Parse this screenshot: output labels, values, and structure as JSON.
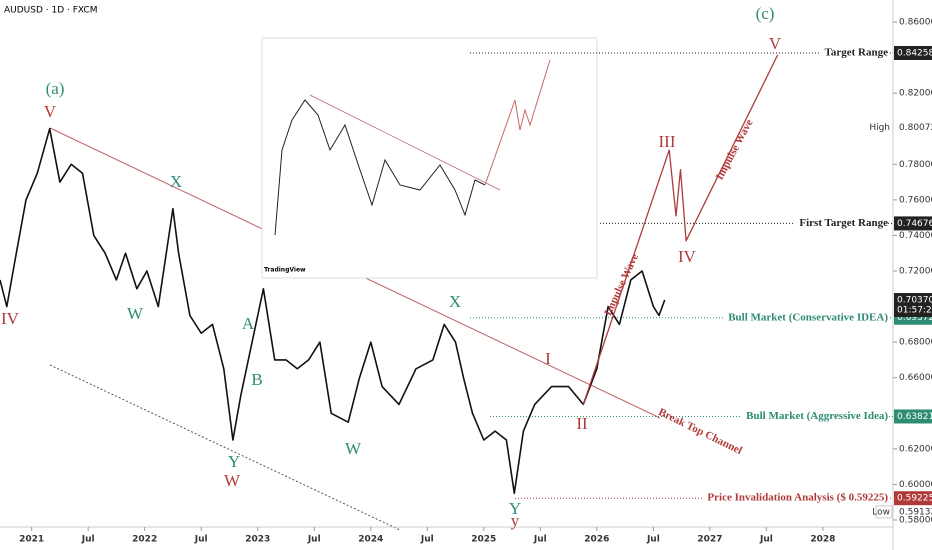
{
  "chart_data": {
    "type": "line",
    "title": "AUDUSD · 1D · FXCM",
    "xlim": [
      2020.72,
      2028.62
    ],
    "ylim": [
      0.58,
      0.86
    ],
    "xticks": [
      2021,
      {
        "value": 2021.5,
        "label": "Jul"
      },
      2022,
      {
        "value": 2022.5,
        "label": "Jul"
      },
      2023,
      {
        "value": 2023.5,
        "label": "Jul"
      },
      2024,
      {
        "value": 2024.5,
        "label": "Jul"
      },
      2025,
      {
        "value": 2025.5,
        "label": "Jul"
      },
      2026,
      {
        "value": 2026.5,
        "label": "Jul"
      },
      2027,
      {
        "value": 2027.5,
        "label": "Jul"
      },
      2028
    ],
    "yticks": [
      {
        "value": 0.58,
        "label": "0.58000"
      },
      {
        "value": 0.6,
        "label": "0.60000"
      },
      {
        "value": 0.62,
        "label": "0.62000"
      },
      {
        "value": 0.66,
        "label": "0.66000"
      },
      {
        "value": 0.68,
        "label": "0.68000"
      },
      {
        "value": 0.72,
        "label": "0.72000"
      },
      {
        "value": 0.74,
        "label": "0.74000"
      },
      {
        "value": 0.76,
        "label": "0.76000"
      },
      {
        "value": 0.78,
        "label": "0.78000"
      },
      {
        "value": 0.82,
        "label": "0.82000"
      },
      {
        "value": 0.86,
        "label": "0.86000"
      }
    ],
    "series": [
      {
        "name": "AUDUSD",
        "color": "#111111",
        "x": [
          2020.72,
          2020.78,
          2020.85,
          2020.95,
          2021.05,
          2021.16,
          2021.25,
          2021.35,
          2021.45,
          2021.55,
          2021.65,
          2021.75,
          2021.83,
          2021.93,
          2022.02,
          2022.12,
          2022.25,
          2022.3,
          2022.4,
          2022.5,
          2022.6,
          2022.7,
          2022.78,
          2022.85,
          2022.95,
          2023.05,
          2023.15,
          2023.25,
          2023.35,
          2023.45,
          2023.55,
          2023.65,
          2023.8,
          2023.9,
          2024.0,
          2024.1,
          2024.25,
          2024.4,
          2024.55,
          2024.65,
          2024.75,
          2024.82,
          2024.9,
          2025.0,
          2025.1,
          2025.2,
          2025.27,
          2025.35,
          2025.45,
          2025.6,
          2025.75,
          2025.88,
          2026.0,
          2026.1,
          2026.2,
          2026.3,
          2026.4,
          2026.5,
          2026.55,
          2026.6
        ],
        "values": [
          0.715,
          0.7,
          0.725,
          0.76,
          0.775,
          0.8,
          0.77,
          0.78,
          0.775,
          0.74,
          0.73,
          0.715,
          0.73,
          0.71,
          0.72,
          0.7,
          0.755,
          0.73,
          0.695,
          0.685,
          0.69,
          0.665,
          0.625,
          0.65,
          0.68,
          0.71,
          0.67,
          0.67,
          0.665,
          0.67,
          0.68,
          0.64,
          0.635,
          0.66,
          0.68,
          0.655,
          0.645,
          0.665,
          0.67,
          0.69,
          0.68,
          0.66,
          0.64,
          0.625,
          0.63,
          0.625,
          0.595,
          0.63,
          0.645,
          0.655,
          0.655,
          0.645,
          0.665,
          0.7,
          0.69,
          0.715,
          0.72,
          0.7,
          0.695,
          0.7037
        ]
      },
      {
        "name": "Projection",
        "color": "#b03a3a",
        "x": [
          2025.88,
          2026.64,
          2026.7,
          2026.74,
          2026.79,
          2027.6
        ],
        "values": [
          0.645,
          0.788,
          0.751,
          0.777,
          0.737,
          0.8415
        ]
      }
    ],
    "levels": [
      {
        "label": "Target Range",
        "value": 0.84258,
        "color": "#222222"
      },
      {
        "label": "First Target Range",
        "value": 0.74676,
        "color": "#222222"
      },
      {
        "label": "Bull Market (Conservative IDEA)",
        "value": 0.69372,
        "color": "#2e8b74"
      },
      {
        "label": "Bull Market (Aggressive Idea)",
        "value": 0.63821,
        "color": "#2e8b74"
      },
      {
        "label": "Price Invalidation Analysis ($ 0.59225)",
        "value": 0.59225,
        "color": "#b03a3a"
      }
    ],
    "current": {
      "value": 0.7037,
      "label": "0.70370",
      "countdown": "01:57:21"
    },
    "high": {
      "label": "High",
      "value": 0.80072
    },
    "low": {
      "label": "Low",
      "value": 0.59132
    },
    "annotations": [
      {
        "text": "(a)",
        "color": "#2e8b74"
      },
      {
        "text": "V",
        "color": "#b03a3a"
      },
      {
        "text": "IV",
        "color": "#b03a3a"
      },
      {
        "text": "X",
        "color": "#2e8b74"
      },
      {
        "text": "W",
        "color": "#2e8b74"
      },
      {
        "text": "A",
        "color": "#2e8b74"
      },
      {
        "text": "B",
        "color": "#2e8b74"
      },
      {
        "text": "Y",
        "color": "#2e8b74"
      },
      {
        "text": "W",
        "color": "#b03a3a"
      },
      {
        "text": "W",
        "color": "#2e8b74"
      },
      {
        "text": "X",
        "color": "#2e8b74"
      },
      {
        "text": "I",
        "color": "#b03a3a"
      },
      {
        "text": "II",
        "color": "#b03a3a"
      },
      {
        "text": "Y",
        "color": "#2e8b74"
      },
      {
        "text": "y",
        "color": "#b03a3a"
      },
      {
        "text": "III",
        "color": "#b03a3a"
      },
      {
        "text": "IV",
        "color": "#b03a3a"
      },
      {
        "text": "V",
        "color": "#b03a3a"
      },
      {
        "text": "(c)",
        "color": "#2e8b74"
      },
      {
        "text": "Impulse Wave",
        "color": "#b03a3a"
      },
      {
        "text": "Impulse Wave",
        "color": "#b03a3a"
      },
      {
        "text": "Break Top Channel",
        "color": "#b03a3a"
      }
    ],
    "inset_brand": "TradingView"
  }
}
